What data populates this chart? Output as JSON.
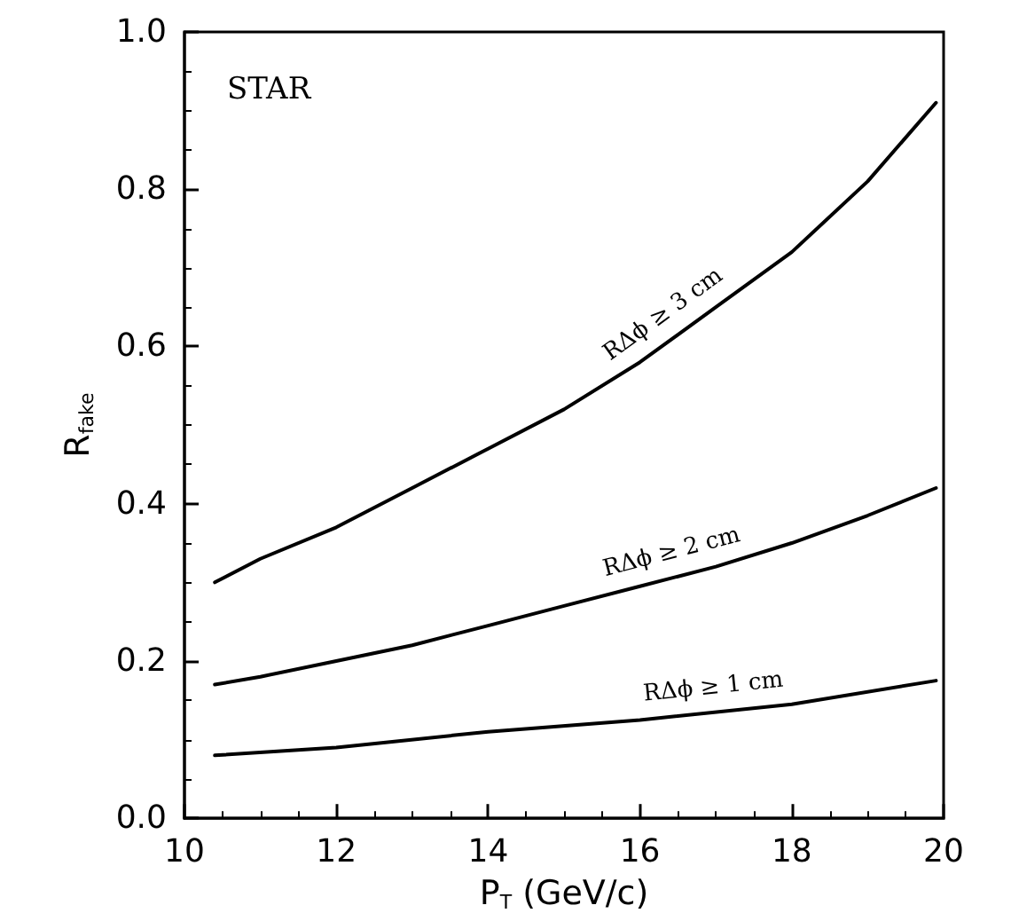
{
  "chart_data": {
    "type": "line",
    "xlabel": "P$_{T}$ (GeV/c)",
    "ylabel": "R$_{fake}$",
    "annotations": [
      "STAR"
    ],
    "xlim": [
      10,
      20
    ],
    "xticks": [
      10,
      12,
      14,
      16,
      18,
      20
    ],
    "ylim": [
      0,
      1
    ],
    "yticks": [
      {
        "value": 0,
        "label": "0.0"
      },
      {
        "value": 0.2,
        "label": "0.2"
      },
      {
        "value": 0.4,
        "label": "0.4"
      },
      {
        "value": 0.6,
        "label": "0.6"
      },
      {
        "value": 0.8,
        "label": "0.8"
      },
      {
        "value": 1,
        "label": "1.0"
      }
    ],
    "grid": false,
    "legend": false,
    "marker": "none",
    "line_style": "solid",
    "series": [
      {
        "name": "RΔϕ ≥ 3 cm",
        "color": "#000000",
        "x": [
          10.4,
          11,
          12,
          13,
          14,
          15,
          16,
          17,
          18,
          19,
          19.9
        ],
        "values": [
          0.3,
          0.33,
          0.37,
          0.42,
          0.47,
          0.52,
          0.58,
          0.65,
          0.72,
          0.81,
          0.91
        ]
      },
      {
        "name": "RΔϕ ≥ 2 cm",
        "color": "#000000",
        "x": [
          10.4,
          11,
          12,
          13,
          14,
          15,
          16,
          17,
          18,
          19,
          19.9
        ],
        "values": [
          0.17,
          0.18,
          0.2,
          0.22,
          0.245,
          0.27,
          0.295,
          0.32,
          0.35,
          0.385,
          0.42
        ]
      },
      {
        "name": "RΔϕ ≥ 1 cm",
        "color": "#000000",
        "x": [
          10.4,
          12,
          14,
          16,
          18,
          19.9
        ],
        "values": [
          0.08,
          0.09,
          0.11,
          0.125,
          0.145,
          0.175
        ]
      }
    ]
  }
}
